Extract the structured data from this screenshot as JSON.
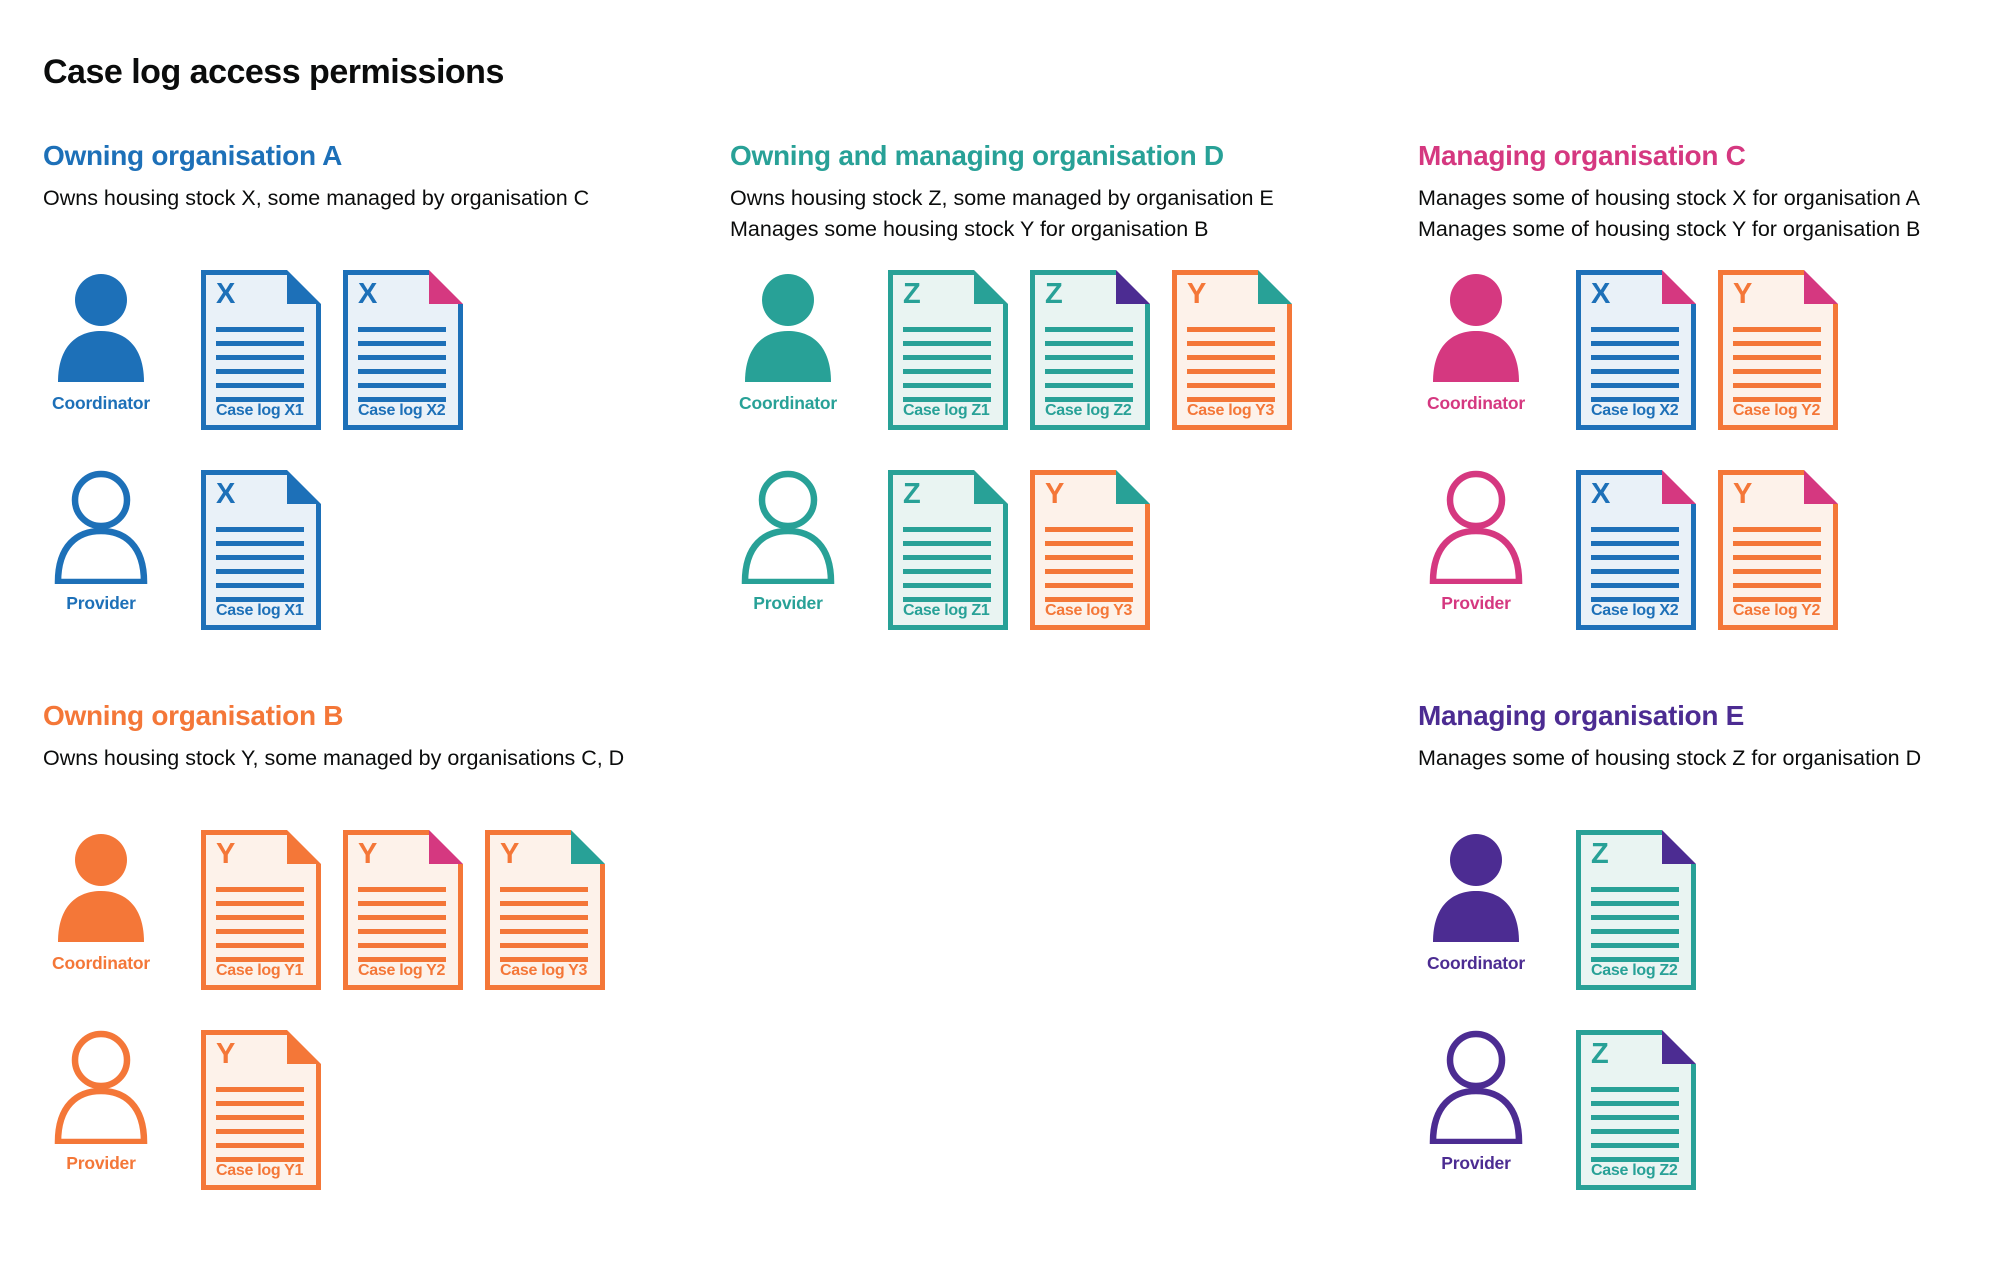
{
  "page_title": "Case log access permissions",
  "palette": {
    "blue": "#1d70b8",
    "teal": "#28a197",
    "pink": "#d53880",
    "orange": "#f47738",
    "purple": "#4c2c92",
    "text": "#0b0c0c"
  },
  "tints": {
    "blue": "#e9f1f8",
    "teal": "#e9f4f2",
    "orange": "#fdf2ea"
  },
  "sections": [
    {
      "id": "owning-organisation-a",
      "title": "Owning organisation A",
      "color": "blue",
      "description": [
        "Owns housing stock X, some managed by organisation C"
      ],
      "rows": [
        {
          "role": "Coordinator",
          "docs": [
            {
              "letter": "X",
              "label": "Case log X1",
              "doc_color": "blue",
              "fold_color": "blue"
            },
            {
              "letter": "X",
              "label": "Case log X2",
              "doc_color": "blue",
              "fold_color": "pink"
            }
          ]
        },
        {
          "role": "Provider",
          "docs": [
            {
              "letter": "X",
              "label": "Case log X1",
              "doc_color": "blue",
              "fold_color": "blue"
            }
          ]
        }
      ]
    },
    {
      "id": "owning-and-managing-organisation-d",
      "title": "Owning and managing organisation D",
      "color": "teal",
      "description": [
        "Owns housing stock Z, some managed by organisation E",
        "Manages some housing stock Y for organisation B"
      ],
      "rows": [
        {
          "role": "Coordinator",
          "docs": [
            {
              "letter": "Z",
              "label": "Case log Z1",
              "doc_color": "teal",
              "fold_color": "teal"
            },
            {
              "letter": "Z",
              "label": "Case log Z2",
              "doc_color": "teal",
              "fold_color": "purple"
            },
            {
              "letter": "Y",
              "label": "Case log Y3",
              "doc_color": "orange",
              "fold_color": "teal"
            }
          ]
        },
        {
          "role": "Provider",
          "docs": [
            {
              "letter": "Z",
              "label": "Case log Z1",
              "doc_color": "teal",
              "fold_color": "teal"
            },
            {
              "letter": "Y",
              "label": "Case log Y3",
              "doc_color": "orange",
              "fold_color": "teal"
            }
          ]
        }
      ]
    },
    {
      "id": "managing-organisation-c",
      "title": "Managing organisation C",
      "color": "pink",
      "description": [
        "Manages some of housing stock X for organisation A",
        "Manages some of housing stock Y for organisation B"
      ],
      "rows": [
        {
          "role": "Coordinator",
          "docs": [
            {
              "letter": "X",
              "label": "Case log X2",
              "doc_color": "blue",
              "fold_color": "pink"
            },
            {
              "letter": "Y",
              "label": "Case log Y2",
              "doc_color": "orange",
              "fold_color": "pink"
            }
          ]
        },
        {
          "role": "Provider",
          "docs": [
            {
              "letter": "X",
              "label": "Case log X2",
              "doc_color": "blue",
              "fold_color": "pink"
            },
            {
              "letter": "Y",
              "label": "Case log Y2",
              "doc_color": "orange",
              "fold_color": "pink"
            }
          ]
        }
      ]
    },
    {
      "id": "owning-organisation-b",
      "title": "Owning organisation B",
      "color": "orange",
      "description": [
        "Owns housing stock Y, some managed by organisations C, D"
      ],
      "rows": [
        {
          "role": "Coordinator",
          "docs": [
            {
              "letter": "Y",
              "label": "Case log Y1",
              "doc_color": "orange",
              "fold_color": "orange"
            },
            {
              "letter": "Y",
              "label": "Case log Y2",
              "doc_color": "orange",
              "fold_color": "pink"
            },
            {
              "letter": "Y",
              "label": "Case log Y3",
              "doc_color": "orange",
              "fold_color": "teal"
            }
          ]
        },
        {
          "role": "Provider",
          "docs": [
            {
              "letter": "Y",
              "label": "Case log Y1",
              "doc_color": "orange",
              "fold_color": "orange"
            }
          ]
        }
      ]
    },
    {
      "id": "managing-organisation-e",
      "title": "Managing organisation E",
      "color": "purple",
      "description": [
        "Manages some of housing stock Z for organisation D"
      ],
      "rows": [
        {
          "role": "Coordinator",
          "docs": [
            {
              "letter": "Z",
              "label": "Case log Z2",
              "doc_color": "teal",
              "fold_color": "purple"
            }
          ]
        },
        {
          "role": "Provider",
          "docs": [
            {
              "letter": "Z",
              "label": "Case log Z2",
              "doc_color": "teal",
              "fold_color": "purple"
            }
          ]
        }
      ]
    }
  ]
}
